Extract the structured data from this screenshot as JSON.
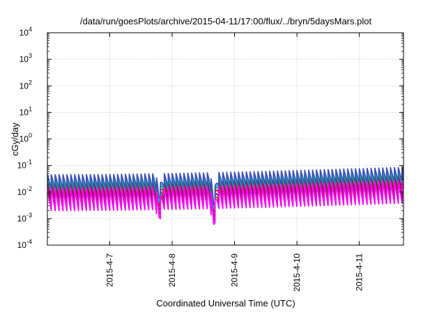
{
  "chart_data": {
    "type": "line",
    "title": "/data/run/goesPlots/archive/2015-04-11/17:00/flux/../bryn/5daysMars.plot",
    "xlabel": "Coordinated Universal Time (UTC)",
    "ylabel": "cGy/day",
    "x_range": [
      "2015-04-06T00:00",
      "2015-04-11T17:00"
    ],
    "x_ticks": [
      "2015-4-7",
      "2015-4-8",
      "2015-4-9",
      "2015-4-10",
      "2015-4-11"
    ],
    "y_scale": "log",
    "ylim": [
      0.0001,
      10000
    ],
    "y_ticks": [
      {
        "base": "10",
        "exp": "-4"
      },
      {
        "base": "10",
        "exp": "-3"
      },
      {
        "base": "10",
        "exp": "-2"
      },
      {
        "base": "10",
        "exp": "-1"
      },
      {
        "base": "10",
        "exp": "0"
      },
      {
        "base": "10",
        "exp": "1"
      },
      {
        "base": "10",
        "exp": "2"
      },
      {
        "base": "10",
        "exp": "3"
      },
      {
        "base": "10",
        "exp": "4"
      }
    ],
    "grid": true,
    "legend": "none",
    "sawtooth_period_hours": 1.5,
    "dip_events": [
      {
        "center": "2015-04-07T19:00",
        "min_factor": 0.25
      },
      {
        "center": "2015-04-08T16:00",
        "min_factor": 0.12
      }
    ],
    "series": [
      {
        "color": "#ff0000",
        "peak": 0.025,
        "trough": 0.007,
        "end_factor": 1.9
      },
      {
        "color": "#800080",
        "peak": 0.02,
        "trough": 0.0045,
        "end_factor": 1.9
      },
      {
        "color": "#8b4513",
        "peak": 0.016,
        "trough": 0.003,
        "end_factor": 1.9
      },
      {
        "color": "#00aa55",
        "peak": 0.032,
        "trough": 0.009,
        "end_factor": 1.9
      },
      {
        "color": "#00bcd4",
        "peak": 0.038,
        "trough": 0.011,
        "end_factor": 1.9
      },
      {
        "color": "#3f51b5",
        "peak": 0.045,
        "trough": 0.013,
        "end_factor": 1.9
      },
      {
        "color": "#ff00ff",
        "peak": 0.014,
        "trough": 0.002,
        "end_factor": 1.9
      }
    ]
  }
}
